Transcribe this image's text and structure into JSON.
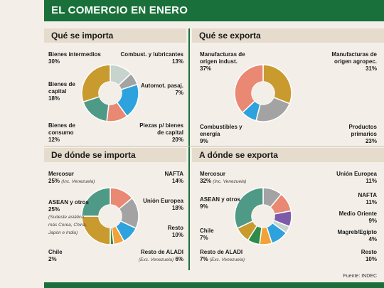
{
  "header": {
    "title": "EL COMERCIO EN ENERO"
  },
  "source": "Fuente: INDEC",
  "colors": {
    "green": "#19703a",
    "gold": "#c99a2e",
    "teal": "#4f9a86",
    "salmon": "#e98873",
    "sky": "#2ea2dd",
    "gray": "#a3a3a3",
    "lightgray": "#c7d3cd",
    "purple": "#7e5ba8",
    "darkgreen": "#2e8c4a",
    "orange": "#f2a23a"
  },
  "panels": {
    "importa": {
      "heading": "Qué se importa"
    },
    "exporta": {
      "heading": "Qué se exporta"
    },
    "dondeImporta": {
      "heading": "De dónde se importa"
    },
    "dondeExporta": {
      "heading": "A dónde se exporta"
    }
  },
  "chart_data": [
    {
      "type": "pie",
      "title": "Qué se importa",
      "slices": [
        {
          "label": "Combust. y lubricantes",
          "value": 13,
          "display": "13%",
          "color": "#c7d3cd"
        },
        {
          "label": "Automot. pasaj.",
          "value": 7,
          "display": "7%",
          "color": "#a3a3a3"
        },
        {
          "label": "Piezas p/ bienes de capital",
          "value": 20,
          "display": "20%",
          "color": "#2ea2dd"
        },
        {
          "label": "Bienes de consumo",
          "value": 12,
          "display": "12%",
          "color": "#e98873"
        },
        {
          "label": "Bienes de capital",
          "value": 18,
          "display": "18%",
          "color": "#4f9a86"
        },
        {
          "label": "Bienes intermedios",
          "value": 30,
          "display": "30%",
          "color": "#c99a2e"
        }
      ]
    },
    {
      "type": "pie",
      "title": "Qué se exporta",
      "slices": [
        {
          "label": "Manufacturas de origen agropec.",
          "value": 31,
          "display": "31%",
          "color": "#c99a2e"
        },
        {
          "label": "Productos primarios",
          "value": 23,
          "display": "23%",
          "color": "#a3a3a3"
        },
        {
          "label": "Combustibles y energía",
          "value": 9,
          "display": "9%",
          "color": "#2ea2dd"
        },
        {
          "label": "Manufacturas de origen indust.",
          "value": 37,
          "display": "37%",
          "color": "#e98873"
        }
      ]
    },
    {
      "type": "pie",
      "title": "De dónde se importa",
      "slices": [
        {
          "label": "NAFTA",
          "value": 14,
          "display": "14%",
          "color": "#e98873"
        },
        {
          "label": "Unión Europea",
          "value": 18,
          "display": "18%",
          "color": "#a3a3a3"
        },
        {
          "label": "Resto",
          "value": 10,
          "display": "10%",
          "color": "#2ea2dd"
        },
        {
          "label": "Resto de ALADI",
          "value": 6,
          "display": "6%",
          "color": "#f2a23a",
          "note": "(Exc. Venezuela)"
        },
        {
          "label": "Chile",
          "value": 2,
          "display": "2%",
          "color": "#2e8c4a"
        },
        {
          "label": "ASEAN y otros",
          "value": 25,
          "display": "25%",
          "color": "#c99a2e",
          "note": "(Sudeste asiático más Corea, China, Japón e India)"
        },
        {
          "label": "Mercosur",
          "value": 25,
          "display": "25%",
          "color": "#4f9a86",
          "note": "(Inc. Venezuela)"
        }
      ]
    },
    {
      "type": "pie",
      "title": "A dónde se exporta",
      "slices": [
        {
          "label": "Unión Europea",
          "value": 11,
          "display": "11%",
          "color": "#a3a3a3"
        },
        {
          "label": "NAFTA",
          "value": 11,
          "display": "11%",
          "color": "#e98873"
        },
        {
          "label": "Medio Oriente",
          "value": 9,
          "display": "9%",
          "color": "#7e5ba8"
        },
        {
          "label": "Magreb/Egipto",
          "value": 4,
          "display": "4%",
          "color": "#c7d3cd"
        },
        {
          "label": "Resto",
          "value": 10,
          "display": "10%",
          "color": "#2ea2dd"
        },
        {
          "label": "Resto de ALADI",
          "value": 7,
          "display": "7%",
          "color": "#f2a23a",
          "note": "(Exc. Venezuela)"
        },
        {
          "label": "Chile",
          "value": 7,
          "display": "7%",
          "color": "#2e8c4a"
        },
        {
          "label": "ASEAN y otros",
          "value": 9,
          "display": "9%",
          "color": "#c99a2e"
        },
        {
          "label": "Mercosur",
          "value": 32,
          "display": "32%",
          "color": "#4f9a86",
          "note": "(Inc. Venezuela)"
        }
      ]
    }
  ]
}
